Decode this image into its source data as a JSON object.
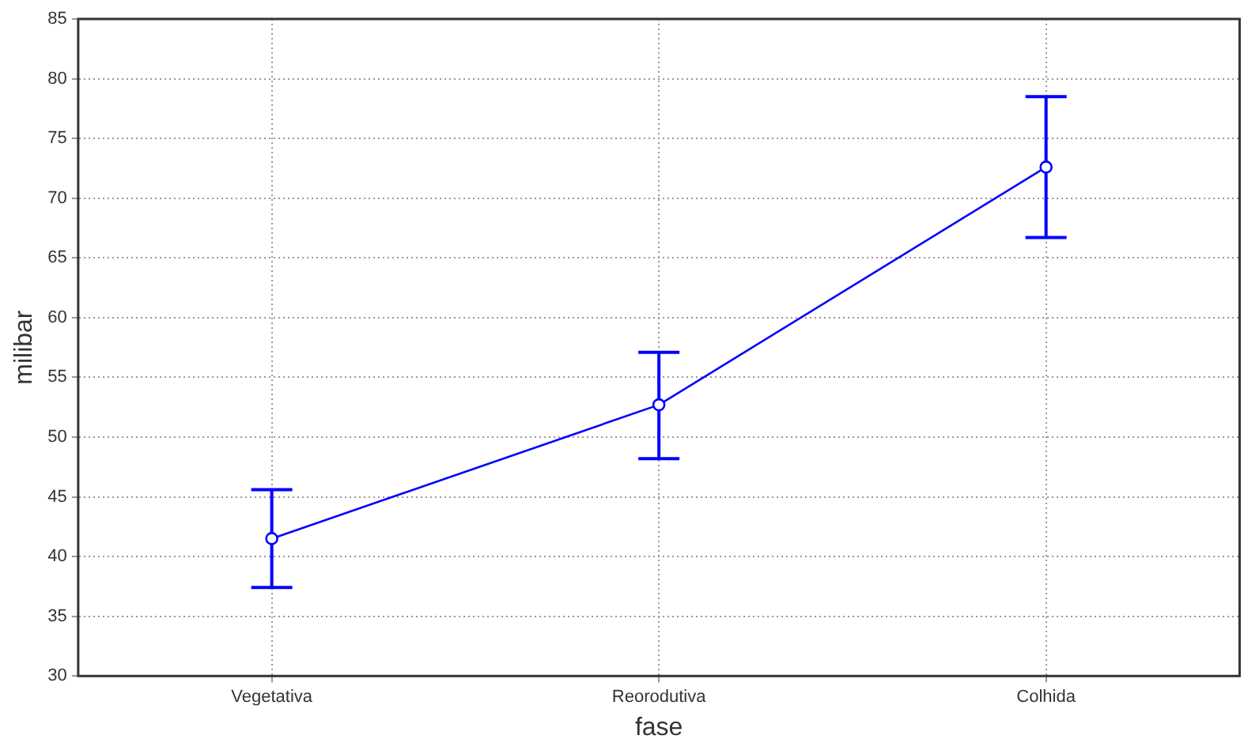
{
  "chart_data": {
    "type": "line",
    "xlabel": "fase",
    "ylabel": "milibar",
    "categories": [
      "Vegetativa",
      "Reorodutiva",
      "Colhida"
    ],
    "series": [
      {
        "color": "#0000ff",
        "values": [
          41.5,
          52.7,
          72.6
        ],
        "errors": [
          [
            37.4,
            45.6
          ],
          [
            48.2,
            57.1
          ],
          [
            66.7,
            78.5
          ]
        ]
      }
    ],
    "ylim": [
      30,
      85
    ],
    "yticks": [
      30,
      35,
      40,
      45,
      50,
      55,
      60,
      65,
      70,
      75,
      80,
      85
    ],
    "grid": true,
    "marker": "circle",
    "line_style": "solid",
    "legend": false
  }
}
